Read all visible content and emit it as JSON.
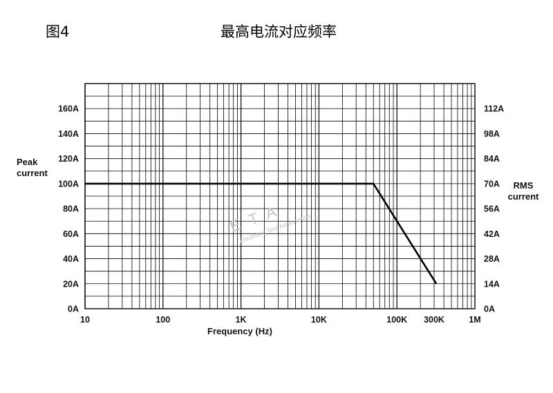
{
  "figure_label": "图4",
  "title": "最高电流对应频率",
  "watermark": {
    "main": "ETA",
    "sub": "Electronic Test Accessories"
  },
  "chart_data": {
    "type": "line",
    "title": "最高电流对应频率",
    "xlabel": "Frequency (Hz)",
    "ylabel": "Peak current",
    "y2label": "RMS current",
    "xscale": "log",
    "xlim": [
      10,
      1000000
    ],
    "ylim": [
      0,
      180
    ],
    "grid": true,
    "x_ticks": [
      {
        "value": 10,
        "label": "10"
      },
      {
        "value": 100,
        "label": "100"
      },
      {
        "value": 1000,
        "label": "1K"
      },
      {
        "value": 10000,
        "label": "10K"
      },
      {
        "value": 100000,
        "label": "100K"
      },
      {
        "value": 300000,
        "label": "300K"
      },
      {
        "value": 1000000,
        "label": "1M"
      }
    ],
    "y_ticks": [
      {
        "value": 0,
        "label": "0A"
      },
      {
        "value": 20,
        "label": "20A"
      },
      {
        "value": 40,
        "label": "40A"
      },
      {
        "value": 60,
        "label": "60A"
      },
      {
        "value": 80,
        "label": "80A"
      },
      {
        "value": 100,
        "label": "100A"
      },
      {
        "value": 120,
        "label": "120A"
      },
      {
        "value": 140,
        "label": "140A"
      },
      {
        "value": 160,
        "label": "160A"
      }
    ],
    "y2_ticks": [
      {
        "value": 0,
        "label": "0A"
      },
      {
        "value": 20,
        "label": "14A"
      },
      {
        "value": 40,
        "label": "28A"
      },
      {
        "value": 60,
        "label": "42A"
      },
      {
        "value": 80,
        "label": "56A"
      },
      {
        "value": 100,
        "label": "70A"
      },
      {
        "value": 120,
        "label": "84A"
      },
      {
        "value": 140,
        "label": "98A"
      },
      {
        "value": 160,
        "label": "112A"
      }
    ],
    "series": [
      {
        "color": "#000000",
        "points": [
          [
            10,
            100
          ],
          [
            50000,
            100
          ],
          [
            320000,
            20
          ]
        ]
      }
    ]
  }
}
